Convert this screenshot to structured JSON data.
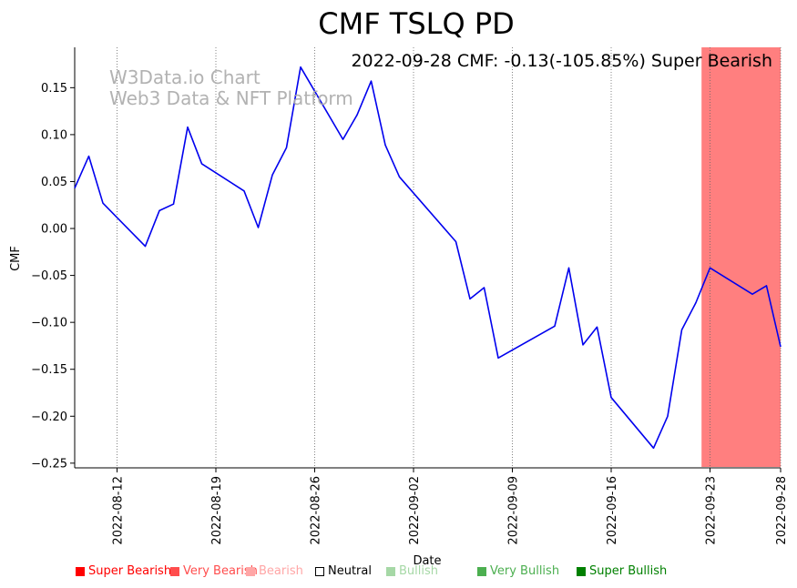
{
  "chart_data": {
    "type": "line",
    "title": "CMF TSLQ PD",
    "annotation": "2022-09-28 CMF: -0.13(-105.85%) Super Bearish",
    "watermark": [
      "W3Data.io Chart",
      "Web3 Data & NFT Platform"
    ],
    "xlabel": "Date",
    "ylabel": "CMF",
    "ylim": [
      -0.255,
      0.193
    ],
    "xlim": [
      "2022-08-09",
      "2022-09-28"
    ],
    "yticks": [
      -0.25,
      -0.2,
      -0.15,
      -0.1,
      -0.05,
      0.0,
      0.05,
      0.1,
      0.15
    ],
    "ytick_labels": [
      "−0.25",
      "−0.20",
      "−0.15",
      "−0.10",
      "−0.05",
      "0.00",
      "0.05",
      "0.10",
      "0.15"
    ],
    "xticks": [
      "2022-08-12",
      "2022-08-19",
      "2022-08-26",
      "2022-09-02",
      "2022-09-09",
      "2022-09-16",
      "2022-09-23",
      "2022-09-28"
    ],
    "highlight": {
      "from": "2022-09-22.4",
      "to": "2022-09-28",
      "color": "#ff7f7f",
      "label": "Super Bearish"
    },
    "series": [
      {
        "name": "CMF",
        "color": "#0000ee",
        "x": [
          "2022-08-09",
          "2022-08-10",
          "2022-08-11",
          "2022-08-14",
          "2022-08-15",
          "2022-08-16",
          "2022-08-17",
          "2022-08-18",
          "2022-08-21",
          "2022-08-22",
          "2022-08-23",
          "2022-08-24",
          "2022-08-25",
          "2022-08-28",
          "2022-08-29",
          "2022-08-30",
          "2022-08-31",
          "2022-09-01",
          "2022-09-05",
          "2022-09-06",
          "2022-09-07",
          "2022-09-08",
          "2022-09-12",
          "2022-09-13",
          "2022-09-14",
          "2022-09-15",
          "2022-09-16",
          "2022-09-19",
          "2022-09-20",
          "2022-09-21",
          "2022-09-22",
          "2022-09-23",
          "2022-09-26",
          "2022-09-27",
          "2022-09-28"
        ],
        "values": [
          0.043,
          0.077,
          0.027,
          -0.019,
          0.019,
          0.026,
          0.108,
          0.069,
          0.04,
          0.001,
          0.057,
          0.086,
          0.172,
          0.095,
          0.121,
          0.157,
          0.089,
          0.055,
          -0.014,
          -0.075,
          -0.063,
          -0.138,
          -0.104,
          -0.042,
          -0.124,
          -0.105,
          -0.18,
          -0.234,
          -0.2,
          -0.108,
          -0.079,
          -0.042,
          -0.07,
          -0.061,
          -0.126
        ]
      }
    ],
    "legend": [
      {
        "label": "Super Bearish",
        "color": "#ff0000",
        "filled": true
      },
      {
        "label": "Very Bearish",
        "color": "#ff4d4d",
        "filled": true
      },
      {
        "label": "Bearish",
        "color": "#ffa6a6",
        "filled": true
      },
      {
        "label": "Neutral",
        "color": "#000000",
        "filled": false
      },
      {
        "label": "Bullish",
        "color": "#a6d8a6",
        "filled": true
      },
      {
        "label": "Very Bullish",
        "color": "#4caf50",
        "filled": true
      },
      {
        "label": "Super Bullish",
        "color": "#008000",
        "filled": true
      }
    ]
  }
}
